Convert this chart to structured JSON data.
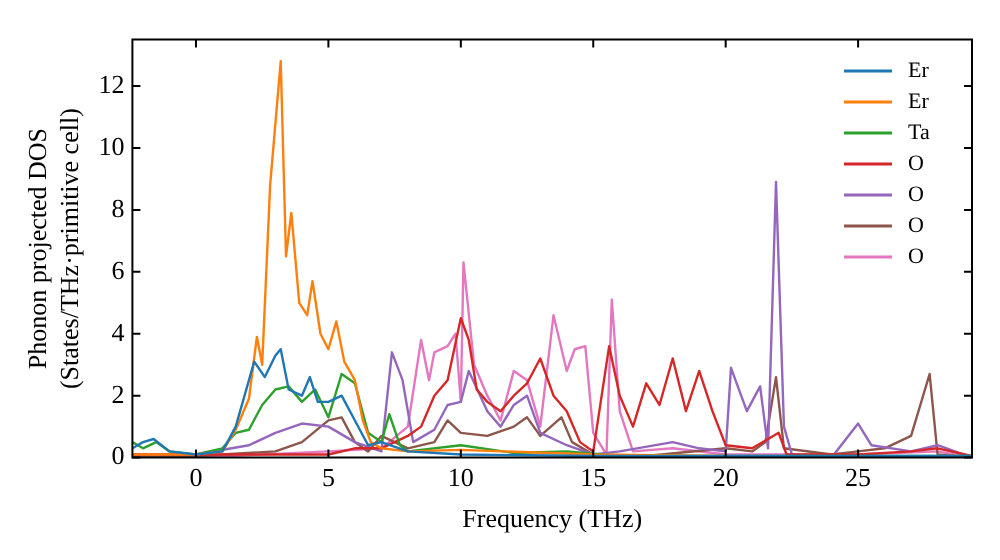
{
  "chart_data": {
    "type": "line",
    "xlabel": "Frequency (THz)",
    "ylabel": "Phonon projected DOS\n(States/THz·primitive cell)",
    "xlim": [
      -2.4,
      29.3
    ],
    "ylim": [
      0,
      13.5
    ],
    "xticks": [
      0,
      5,
      10,
      15,
      20,
      25
    ],
    "yticks": [
      0,
      2,
      4,
      6,
      8,
      10,
      12
    ],
    "grid": false,
    "legend": "top right",
    "marker": "none",
    "line_style": "solid",
    "series": [
      {
        "name": "Er",
        "color": "#1f77b4",
        "x": [
          -2.4,
          -2,
          -1.6,
          -1,
          0,
          1,
          1.5,
          2.2,
          2.6,
          3.0,
          3.2,
          3.5,
          4.0,
          4.3,
          4.6,
          5.0,
          5.5,
          6.0,
          6.5,
          7.0,
          8.0,
          10,
          15,
          20,
          25,
          29.3
        ],
        "values": [
          0.3,
          0.5,
          0.6,
          0.2,
          0.1,
          0.2,
          1.0,
          3.1,
          2.6,
          3.3,
          3.5,
          2.2,
          2.0,
          2.6,
          1.8,
          1.8,
          2.0,
          1.2,
          0.4,
          0.5,
          0.2,
          0.1,
          0.05,
          0.05,
          0.05,
          0.05
        ]
      },
      {
        "name": "Er",
        "color": "#ff7f0e",
        "x": [
          -2.4,
          -1,
          0,
          1,
          1.5,
          2.0,
          2.3,
          2.5,
          2.8,
          3.2,
          3.4,
          3.6,
          3.9,
          4.2,
          4.4,
          4.7,
          5.0,
          5.3,
          5.6,
          6.0,
          6.3,
          6.6,
          7.0,
          8.0,
          10,
          15,
          20
        ],
        "values": [
          0.1,
          0.1,
          0.1,
          0.2,
          0.9,
          1.9,
          3.9,
          3.0,
          8.8,
          12.8,
          6.5,
          7.9,
          5.0,
          4.6,
          5.7,
          4.0,
          3.5,
          4.4,
          3.1,
          2.5,
          1.2,
          0.5,
          0.3,
          0.2,
          0.25,
          0.1,
          0.05
        ]
      },
      {
        "name": "Ta",
        "color": "#2ca02c",
        "x": [
          -2.4,
          -2,
          -1.5,
          -1,
          0,
          1,
          1.5,
          2,
          2.5,
          3,
          3.5,
          4,
          4.5,
          5,
          5.5,
          6,
          6.5,
          7,
          7.3,
          7.7,
          8,
          10,
          12,
          14,
          16,
          20,
          29.3
        ],
        "values": [
          0.5,
          0.3,
          0.5,
          0.2,
          0.1,
          0.3,
          0.8,
          0.9,
          1.7,
          2.2,
          2.3,
          1.8,
          2.2,
          1.3,
          2.7,
          2.4,
          0.8,
          0.5,
          1.4,
          0.4,
          0.2,
          0.4,
          0.15,
          0.2,
          0.05,
          0.05,
          0.05
        ]
      },
      {
        "name": "O",
        "color": "#d62728",
        "x": [
          -2.4,
          0,
          5,
          6,
          7,
          8,
          8.5,
          9,
          9.5,
          10,
          10.3,
          10.6,
          11,
          11.5,
          12,
          12.5,
          13,
          13.5,
          14,
          14.5,
          15,
          15.6,
          16,
          16.5,
          17,
          17.5,
          18,
          18.5,
          19,
          19.5,
          20,
          21,
          22,
          22.3,
          25,
          27,
          28,
          29.3
        ],
        "values": [
          0.1,
          0.1,
          0.1,
          0.3,
          0.3,
          0.7,
          1.0,
          2.0,
          2.5,
          4.5,
          3.8,
          2.2,
          1.8,
          1.5,
          2.0,
          2.4,
          3.2,
          2.0,
          1.5,
          0.5,
          0.2,
          3.6,
          2.0,
          1.0,
          2.4,
          1.7,
          3.2,
          1.5,
          2.8,
          1.5,
          0.4,
          0.3,
          0.8,
          0.1,
          0.1,
          0.2,
          0.3,
          0.05
        ]
      },
      {
        "name": "O",
        "color": "#9467bd",
        "x": [
          -2.4,
          0,
          2,
          3,
          4,
          5,
          6,
          7,
          7.4,
          7.8,
          8.2,
          9,
          9.5,
          10,
          10.3,
          11,
          11.5,
          12,
          12.5,
          13,
          14,
          15,
          16,
          18,
          19,
          20,
          20.2,
          20.8,
          21.3,
          21.6,
          21.9,
          22.2,
          22.5,
          24,
          25,
          25.5,
          27,
          28,
          29.3
        ],
        "values": [
          0.1,
          0.1,
          0.4,
          0.8,
          1.1,
          1.0,
          0.5,
          0.2,
          3.4,
          2.5,
          0.5,
          0.9,
          1.7,
          1.8,
          2.8,
          1.5,
          1.0,
          1.7,
          2.0,
          0.8,
          0.4,
          0.1,
          0.2,
          0.5,
          0.3,
          0.2,
          2.9,
          1.5,
          2.3,
          0.3,
          8.9,
          1.0,
          0.1,
          0.0,
          1.1,
          0.4,
          0.2,
          0.4,
          0.0
        ]
      },
      {
        "name": "O",
        "color": "#8c564b",
        "x": [
          -2.4,
          0,
          3,
          4,
          5,
          5.5,
          6,
          6.5,
          7,
          8,
          9,
          9.5,
          10,
          11,
          12,
          12.5,
          13,
          13.8,
          14.2,
          15,
          17,
          20,
          21,
          21.5,
          21.9,
          22.2,
          24,
          25,
          26,
          27,
          27.7,
          28,
          29.3
        ],
        "values": [
          0.05,
          0.05,
          0.2,
          0.5,
          1.2,
          1.3,
          0.5,
          0.2,
          0.7,
          0.3,
          0.5,
          1.2,
          0.8,
          0.7,
          1.0,
          1.3,
          0.7,
          1.3,
          0.5,
          0.1,
          0.05,
          0.3,
          0.2,
          0.5,
          2.6,
          0.3,
          0.1,
          0.2,
          0.3,
          0.7,
          2.7,
          0.1,
          0.0
        ]
      },
      {
        "name": "O",
        "color": "#e377c2",
        "x": [
          -2.4,
          0,
          5,
          7,
          8,
          8.5,
          8.8,
          9,
          9.5,
          9.8,
          10,
          10.1,
          10.5,
          11,
          11.5,
          12,
          12.5,
          13,
          13.5,
          14,
          14.3,
          14.7,
          15,
          15.5,
          15.7,
          16,
          16.5,
          18,
          20,
          25,
          28,
          29.3
        ],
        "values": [
          0.0,
          0.0,
          0.2,
          0.3,
          1.0,
          3.8,
          2.5,
          3.4,
          3.6,
          4.0,
          1.8,
          6.3,
          3.0,
          2.0,
          1.2,
          2.8,
          2.5,
          1.0,
          4.6,
          2.8,
          3.5,
          3.6,
          0.8,
          0.1,
          5.1,
          1.5,
          0.2,
          0.3,
          0.1,
          0.1,
          0.2,
          0.0
        ]
      }
    ]
  }
}
